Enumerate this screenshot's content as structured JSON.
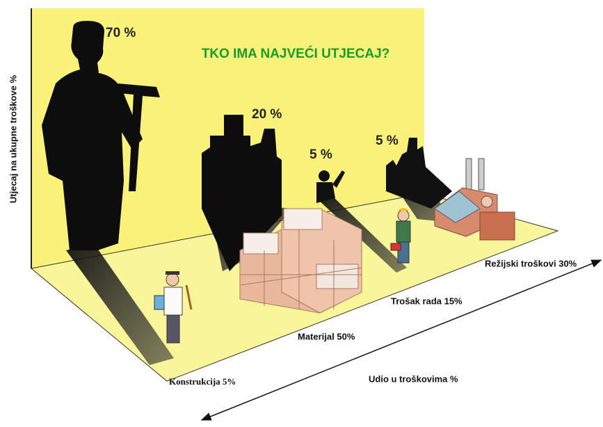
{
  "title": "TKO IMA NAJVEĆI UTJECAJ?",
  "y_axis_label": "Utjecaj na ukupne troškove %",
  "x_axis_label": "Udio u troškovima %",
  "items": [
    {
      "influence": "70 %",
      "label": "Konstrukcija 5%"
    },
    {
      "influence": "20 %",
      "label": "Materijal 50%"
    },
    {
      "influence": "5 %",
      "label": "Trošak rada 15%"
    },
    {
      "influence": "5 %",
      "label": "Režijski troškovi 30%"
    }
  ]
}
